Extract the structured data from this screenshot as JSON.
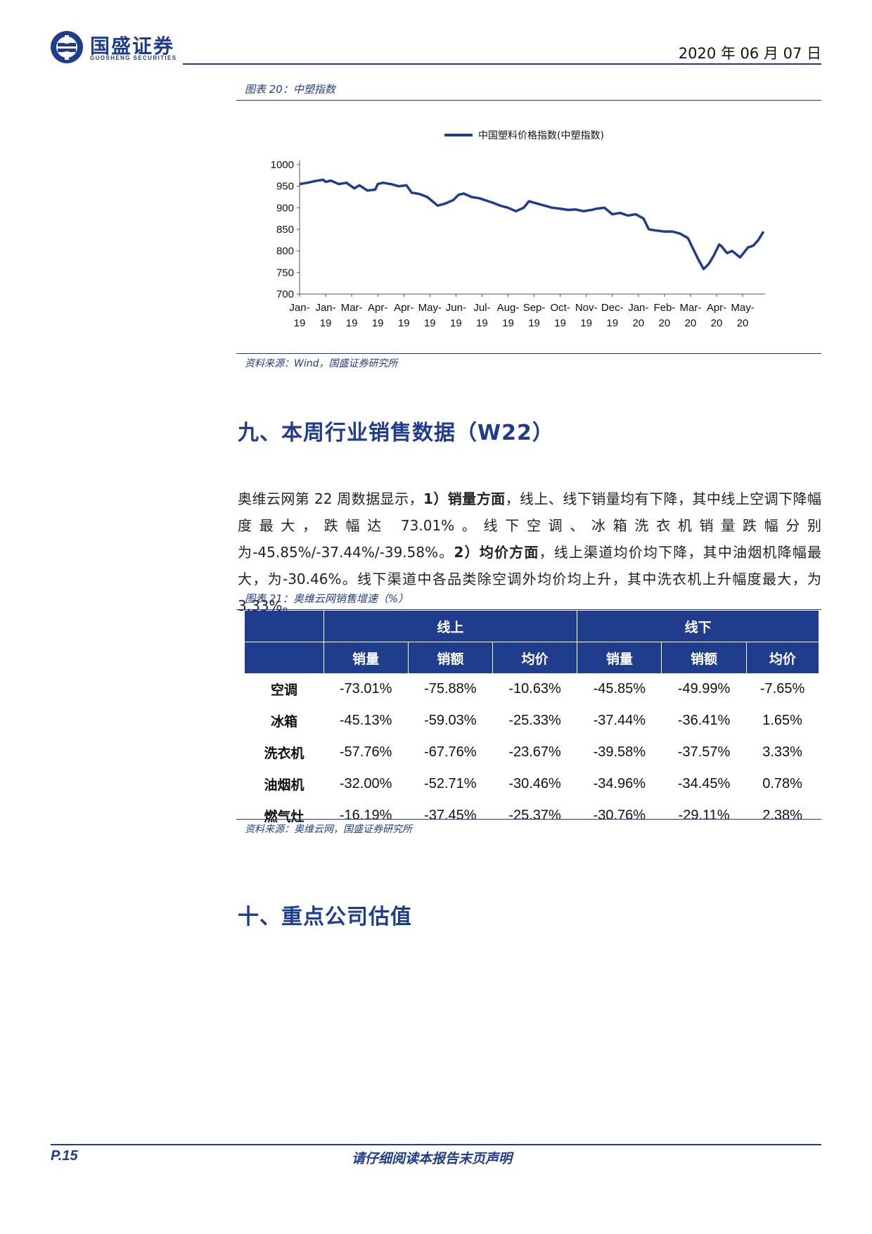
{
  "header": {
    "brand_cn": "国盛证券",
    "brand_en": "GUOSHENG SECURITIES",
    "date": "2020 年 06 月 07 日"
  },
  "figure20": {
    "caption": "图表 20：中塑指数",
    "source": "资料来源：Wind，国盛证券研究所"
  },
  "chart_data": {
    "type": "line",
    "title": "",
    "xlabel": "",
    "ylabel": "",
    "legend": "top-center",
    "ylim": [
      700,
      1000
    ],
    "yticks": [
      "1000",
      "950",
      "900",
      "850",
      "800",
      "750",
      "700"
    ],
    "xticks": [
      {
        "m": "Jan-",
        "y": "19"
      },
      {
        "m": "Jan-",
        "y": "19"
      },
      {
        "m": "Mar-",
        "y": "19"
      },
      {
        "m": "Apr-",
        "y": "19"
      },
      {
        "m": "Apr-",
        "y": "19"
      },
      {
        "m": "May-",
        "y": "19"
      },
      {
        "m": "Jun-",
        "y": "19"
      },
      {
        "m": "Jul-",
        "y": "19"
      },
      {
        "m": "Aug-",
        "y": "19"
      },
      {
        "m": "Sep-",
        "y": "19"
      },
      {
        "m": "Oct-",
        "y": "19"
      },
      {
        "m": "Nov-",
        "y": "19"
      },
      {
        "m": "Dec-",
        "y": "19"
      },
      {
        "m": "Jan-",
        "y": "20"
      },
      {
        "m": "Feb-",
        "y": "20"
      },
      {
        "m": "Mar-",
        "y": "20"
      },
      {
        "m": "Apr-",
        "y": "20"
      },
      {
        "m": "May-",
        "y": "20"
      }
    ],
    "series": [
      {
        "name": "中国塑料价格指数(中塑指数)",
        "color": "#1f3d8c",
        "x": [
          0,
          0.3,
          0.6,
          0.9,
          1.0,
          1.2,
          1.5,
          1.8,
          2.1,
          2.3,
          2.6,
          2.9,
          3.0,
          3.2,
          3.5,
          3.8,
          4.1,
          4.3,
          4.6,
          4.9,
          5.1,
          5.3,
          5.6,
          5.9,
          6.1,
          6.3,
          6.6,
          6.9,
          7.1,
          7.4,
          7.7,
          8.0,
          8.3,
          8.6,
          8.8,
          9.1,
          9.4,
          9.7,
          10.0,
          10.3,
          10.6,
          10.9,
          11.2,
          11.4,
          11.7,
          12.0,
          12.3,
          12.6,
          12.9,
          13.2,
          13.4,
          13.6,
          14.0,
          14.3,
          14.6,
          14.9,
          15.1,
          15.3,
          15.5,
          15.7,
          15.9,
          16.1,
          16.2,
          16.4,
          16.6,
          16.9,
          17.2,
          17.4,
          17.6,
          17.8
        ],
        "values": [
          955,
          958,
          962,
          965,
          960,
          963,
          955,
          958,
          945,
          952,
          940,
          942,
          955,
          958,
          955,
          950,
          952,
          935,
          932,
          925,
          915,
          905,
          910,
          918,
          930,
          933,
          925,
          922,
          918,
          912,
          905,
          900,
          892,
          900,
          915,
          910,
          905,
          900,
          898,
          895,
          896,
          892,
          895,
          898,
          900,
          885,
          888,
          882,
          885,
          875,
          850,
          848,
          845,
          845,
          840,
          830,
          805,
          780,
          758,
          770,
          790,
          815,
          810,
          795,
          800,
          785,
          808,
          812,
          825,
          845
        ]
      }
    ]
  },
  "section9": {
    "heading": "九、本周行业销售数据（W22）",
    "para": {
      "p1": "奥维云网第 22 周数据显示，",
      "b1": "1）销量方面",
      "p2": "，线上、线下销量均有下降，其中线上空调下降幅度最大，跌幅达 73.01%。线下空调、冰箱洗衣机销量跌幅分别为-45.85%/-37.44%/-39.58%。",
      "b2": "2）均价方面",
      "p3": "，线上渠道均价均下降，其中油烟机降幅最大，为-30.46%。线下渠道中各品类除空调外均价均上升，其中洗衣机上升幅度最大，为 3.33%。"
    }
  },
  "figure21": {
    "caption": "图表 21：奥维云网销售增速（%）",
    "group_online": "线上",
    "group_offline": "线下",
    "subheaders": [
      "销量",
      "销额",
      "均价",
      "销量",
      "销额",
      "均价"
    ],
    "rows": [
      {
        "name": "空调",
        "values": [
          "-73.01%",
          "-75.88%",
          "-10.63%",
          "-45.85%",
          "-49.99%",
          "-7.65%"
        ]
      },
      {
        "name": "冰箱",
        "values": [
          "-45.13%",
          "-59.03%",
          "-25.33%",
          "-37.44%",
          "-36.41%",
          "1.65%"
        ]
      },
      {
        "name": "洗衣机",
        "values": [
          "-57.76%",
          "-67.76%",
          "-23.67%",
          "-39.58%",
          "-37.57%",
          "3.33%"
        ]
      },
      {
        "name": "油烟机",
        "values": [
          "-32.00%",
          "-52.71%",
          "-30.46%",
          "-34.96%",
          "-34.45%",
          "0.78%"
        ]
      },
      {
        "name": "燃气灶",
        "values": [
          "-16.19%",
          "-37.45%",
          "-25.37%",
          "-30.76%",
          "-29.11%",
          "2.38%"
        ]
      }
    ],
    "source": "资料来源：奥维云网，国盛证券研究所"
  },
  "section10": {
    "heading": "十、重点公司估值"
  },
  "footer": {
    "page": "P.15",
    "disclaimer": "请仔细阅读本报告末页声明"
  }
}
